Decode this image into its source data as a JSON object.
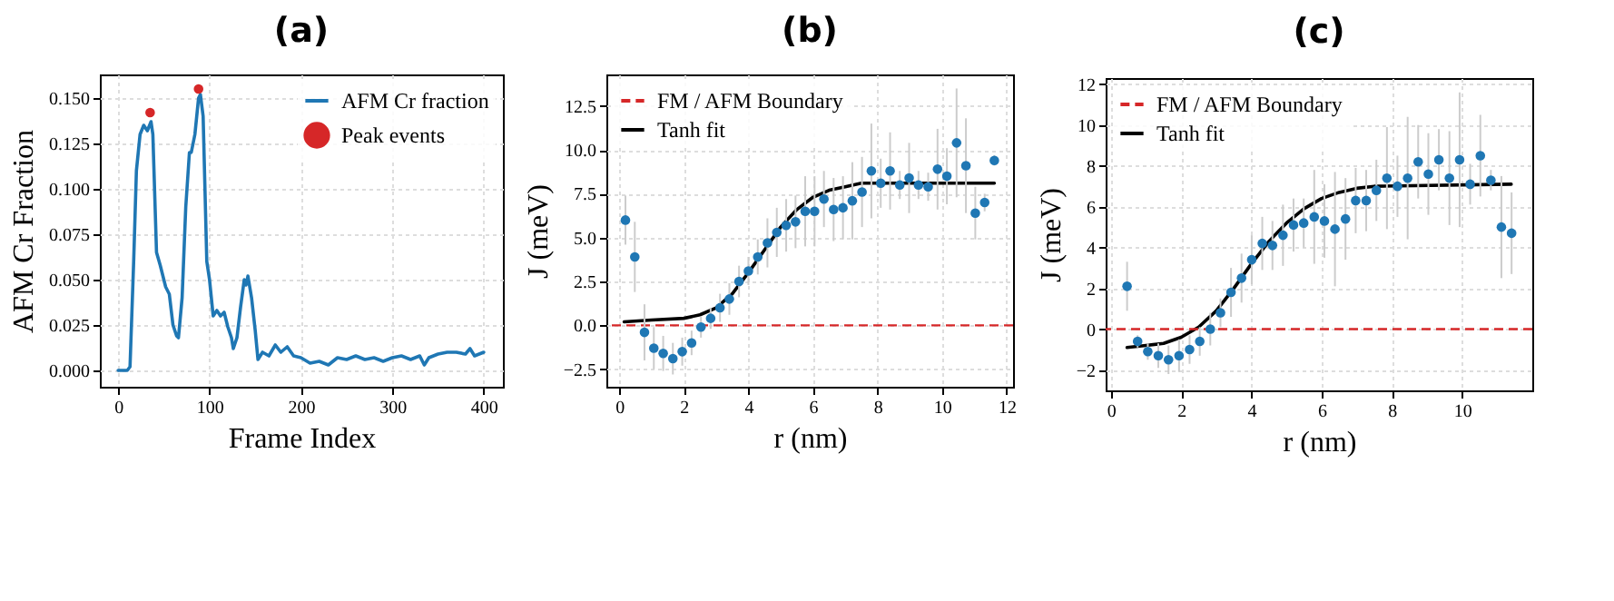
{
  "chart_data": [
    {
      "type": "line",
      "title": "(a)",
      "xlabel": "Frame Index",
      "ylabel": "AFM Cr Fraction",
      "xlim": [
        -20,
        421
      ],
      "ylim": [
        -0.009,
        0.163
      ],
      "xticks": [
        0,
        100,
        200,
        300,
        400
      ],
      "yticks": [
        {
          "value": 0,
          "label": "0.000"
        },
        {
          "value": 0.025,
          "label": "0.025"
        },
        {
          "value": 0.05,
          "label": "0.050"
        },
        {
          "value": 0.075,
          "label": "0.075"
        },
        {
          "value": 0.1,
          "label": "0.100"
        },
        {
          "value": 0.125,
          "label": "0.125"
        },
        {
          "value": 0.15,
          "label": "0.150"
        }
      ],
      "grid": true,
      "legend": "top right",
      "series": [
        {
          "name": "AFM Cr fraction",
          "color": "#1f77b4",
          "x": [
            0,
            10,
            13,
            17,
            20,
            24,
            28,
            32,
            36,
            38,
            42,
            46,
            52,
            56,
            60,
            64,
            66,
            70,
            74,
            78,
            80,
            84,
            88,
            90,
            93,
            97,
            100,
            104,
            108,
            112,
            116,
            120,
            124,
            126,
            130,
            134,
            138,
            140,
            142,
            146,
            150,
            153,
            158,
            165,
            172,
            178,
            185,
            192,
            200,
            210,
            220,
            230,
            240,
            250,
            260,
            270,
            280,
            290,
            300,
            310,
            320,
            330,
            335,
            340,
            350,
            360,
            370,
            380,
            385,
            390,
            400
          ],
          "values": [
            0,
            0,
            0.002,
            0.06,
            0.11,
            0.13,
            0.135,
            0.132,
            0.137,
            0.13,
            0.065,
            0.058,
            0.046,
            0.042,
            0.025,
            0.019,
            0.018,
            0.04,
            0.09,
            0.12,
            0.12,
            0.13,
            0.15,
            0.152,
            0.14,
            0.06,
            0.05,
            0.03,
            0.033,
            0.03,
            0.032,
            0.024,
            0.018,
            0.012,
            0.018,
            0.035,
            0.05,
            0.047,
            0.052,
            0.04,
            0.022,
            0.006,
            0.01,
            0.008,
            0.014,
            0.01,
            0.013,
            0.008,
            0.007,
            0.004,
            0.005,
            0.003,
            0.007,
            0.006,
            0.008,
            0.006,
            0.007,
            0.005,
            0.007,
            0.008,
            0.006,
            0.008,
            0.003,
            0.007,
            0.009,
            0.01,
            0.01,
            0.009,
            0.012,
            0.008,
            0.01
          ]
        },
        {
          "type": "scatter",
          "name": "Peak events",
          "color": "#d62728",
          "marker": "circle",
          "x": [
            35,
            88
          ],
          "values": [
            0.142,
            0.155
          ]
        }
      ]
    },
    {
      "type": "scatter",
      "title": "(b)",
      "xlabel": "r (nm)",
      "ylabel": "J (meV)",
      "xlim": [
        -0.4,
        12.2
      ],
      "ylim": [
        -3.5,
        14.3
      ],
      "xticks": [
        0,
        2,
        4,
        6,
        8,
        10,
        12
      ],
      "yticks": [
        {
          "value": -2.5,
          "label": "−2.5"
        },
        {
          "value": 0,
          "label": "0.0"
        },
        {
          "value": 2.5,
          "label": "2.5"
        },
        {
          "value": 5,
          "label": "5.0"
        },
        {
          "value": 7.5,
          "label": "7.5"
        },
        {
          "value": 10,
          "label": "10.0"
        },
        {
          "value": 12.5,
          "label": "12.5"
        }
      ],
      "grid": true,
      "legend": "top left",
      "ref_lines": [
        {
          "axis": "y",
          "value": 0,
          "label": "FM / AFM Boundary",
          "color": "#d62728",
          "line_style": "dashed"
        }
      ],
      "series": [
        {
          "color": "#1f77b4",
          "marker": "circle",
          "x": [
            0.19,
            0.48,
            0.78,
            1.07,
            1.36,
            1.66,
            1.95,
            2.24,
            2.53,
            2.83,
            3.12,
            3.41,
            3.71,
            4.0,
            4.29,
            4.59,
            4.88,
            5.17,
            5.46,
            5.76,
            6.05,
            6.34,
            6.64,
            6.93,
            7.22,
            7.52,
            7.81,
            8.1,
            8.39,
            8.69,
            8.98,
            9.27,
            9.57,
            9.86,
            10.15,
            10.45,
            10.74,
            11.03,
            11.32,
            11.62
          ],
          "values": [
            6.0,
            3.9,
            -0.4,
            -1.3,
            -1.6,
            -1.9,
            -1.5,
            -1.0,
            -0.1,
            0.4,
            1.0,
            1.5,
            2.5,
            3.1,
            3.9,
            4.7,
            5.3,
            5.7,
            5.9,
            6.5,
            6.5,
            7.2,
            6.6,
            6.7,
            7.1,
            7.6,
            8.8,
            8.1,
            8.8,
            8.0,
            8.4,
            8.0,
            7.9,
            8.9,
            8.5,
            10.4,
            9.1,
            6.4,
            7.0,
            9.4
          ],
          "errors": [
            1.4,
            2.0,
            1.6,
            1.2,
            1.0,
            0.9,
            0.8,
            0.7,
            0.6,
            0.6,
            0.8,
            0.9,
            0.9,
            0.8,
            1.0,
            1.4,
            1.4,
            1.5,
            1.5,
            2.0,
            2.0,
            1.6,
            1.8,
            1.8,
            2.2,
            2.0,
            2.7,
            1.4,
            2.2,
            0.8,
            2.0,
            0.8,
            0.8,
            2.3,
            1.6,
            3.1,
            2.7,
            1.5,
            0.5,
            0.3
          ]
        },
        {
          "type": "line",
          "name": "Tanh fit",
          "color": "#000000",
          "marker": "none",
          "x": [
            0.15,
            1,
            2,
            2.5,
            3,
            3.5,
            4,
            4.5,
            5,
            5.5,
            6,
            6.5,
            7,
            7.5,
            11.62
          ],
          "values": [
            0.2,
            0.3,
            0.4,
            0.6,
            1.0,
            1.8,
            3.0,
            4.3,
            5.6,
            6.6,
            7.3,
            7.7,
            7.9,
            8.1,
            8.1
          ]
        }
      ]
    },
    {
      "type": "scatter",
      "title": "(c)",
      "xlabel": "r (nm)",
      "ylabel": "J (meV)",
      "xlim": [
        -0.15,
        12
      ],
      "ylim": [
        -3,
        12.3
      ],
      "xticks": [
        0,
        2,
        4,
        6,
        8,
        10
      ],
      "yticks": [
        {
          "value": -2,
          "label": "−2"
        },
        0,
        2,
        4,
        6,
        8,
        10,
        12
      ],
      "grid": true,
      "legend": "top left",
      "ref_lines": [
        {
          "axis": "y",
          "value": 0,
          "label": "FM / AFM Boundary",
          "color": "#d62728",
          "line_style": "dashed"
        }
      ],
      "series": [
        {
          "color": "#1f77b4",
          "marker": "circle",
          "x": [
            0.46,
            0.76,
            1.05,
            1.35,
            1.64,
            1.94,
            2.24,
            2.53,
            2.83,
            3.12,
            3.42,
            3.72,
            4.01,
            4.31,
            4.6,
            4.9,
            5.2,
            5.49,
            5.79,
            6.08,
            6.38,
            6.68,
            6.97,
            7.27,
            7.56,
            7.86,
            8.16,
            8.45,
            8.75,
            9.04,
            9.34,
            9.64,
            9.93,
            10.23,
            10.52,
            10.82,
            11.12,
            11.41
          ],
          "values": [
            2.1,
            -0.6,
            -1.1,
            -1.3,
            -1.5,
            -1.3,
            -1.0,
            -0.6,
            0.0,
            0.8,
            1.8,
            2.5,
            3.4,
            4.2,
            4.1,
            4.6,
            5.1,
            5.2,
            5.5,
            5.3,
            4.9,
            5.4,
            6.3,
            6.3,
            6.8,
            7.4,
            7.0,
            7.4,
            8.2,
            7.6,
            8.3,
            7.4,
            8.3,
            7.1,
            8.5,
            7.3,
            5.0,
            4.7
          ],
          "errors": [
            1.2,
            0.3,
            0.4,
            0.6,
            0.7,
            0.8,
            0.7,
            0.7,
            0.8,
            0.7,
            1.2,
            1.2,
            1.2,
            1.3,
            1.2,
            1.5,
            1.3,
            1.2,
            2.3,
            1.8,
            2.8,
            2.0,
            1.6,
            1.5,
            1.5,
            2.5,
            1.5,
            3.0,
            1.8,
            2.0,
            1.5,
            2.3,
            3.3,
            1.0,
            2.0,
            0.5,
            2.5,
            2.0
          ]
        },
        {
          "type": "line",
          "name": "Tanh fit",
          "color": "#000000",
          "marker": "none",
          "x": [
            0.46,
            1,
            1.5,
            2,
            2.5,
            3,
            3.5,
            4,
            4.5,
            5,
            5.5,
            6,
            6.5,
            7,
            7.5,
            11.4
          ],
          "values": [
            -0.9,
            -0.8,
            -0.7,
            -0.4,
            0.1,
            0.9,
            2.0,
            3.2,
            4.3,
            5.2,
            5.9,
            6.4,
            6.7,
            6.9,
            7.0,
            7.1
          ]
        }
      ]
    }
  ]
}
